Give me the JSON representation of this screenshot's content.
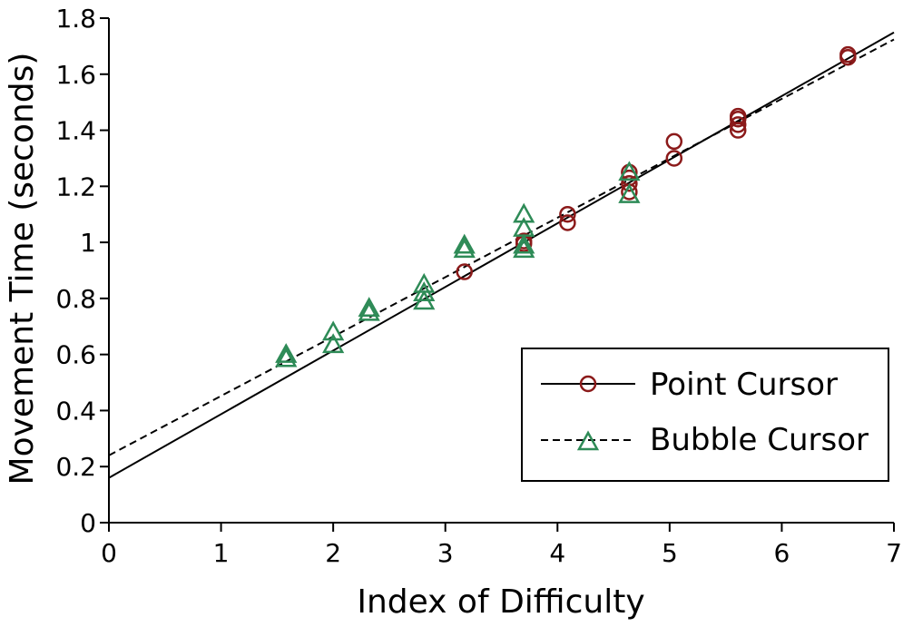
{
  "chart_data": {
    "type": "scatter",
    "title": "",
    "xlabel": "Index of Difficulty",
    "ylabel": "Movement Time (seconds)",
    "xlim": [
      0,
      7
    ],
    "ylim": [
      0,
      1.8
    ],
    "x_ticks": [
      "0",
      "1",
      "2",
      "3",
      "4",
      "5",
      "6",
      "7"
    ],
    "y_ticks": [
      "0",
      "0.2",
      "0.4",
      "0.6",
      "0.8",
      "1",
      "1.2",
      "1.4",
      "1.6",
      "1.8"
    ],
    "grid": false,
    "legend_position": "bottom-right",
    "series": [
      {
        "name": "Point Cursor",
        "marker": "circle",
        "line_style": "solid",
        "color": "#8b1a1a",
        "line_color": "#000000",
        "points": [
          {
            "x": 3.17,
            "y": 0.895
          },
          {
            "x": 3.7,
            "y": 0.995
          },
          {
            "x": 3.7,
            "y": 1.005
          },
          {
            "x": 4.09,
            "y": 1.07
          },
          {
            "x": 4.09,
            "y": 1.1
          },
          {
            "x": 4.64,
            "y": 1.18
          },
          {
            "x": 4.64,
            "y": 1.21
          },
          {
            "x": 4.64,
            "y": 1.23
          },
          {
            "x": 4.64,
            "y": 1.25
          },
          {
            "x": 5.04,
            "y": 1.3
          },
          {
            "x": 5.04,
            "y": 1.36
          },
          {
            "x": 5.61,
            "y": 1.4
          },
          {
            "x": 5.61,
            "y": 1.42
          },
          {
            "x": 5.61,
            "y": 1.44
          },
          {
            "x": 5.61,
            "y": 1.45
          },
          {
            "x": 6.59,
            "y": 1.66
          },
          {
            "x": 6.59,
            "y": 1.67
          }
        ],
        "fit": {
          "intercept": 0.16,
          "slope": 0.227
        }
      },
      {
        "name": "Bubble Cursor",
        "marker": "triangle",
        "line_style": "dashed",
        "color": "#2e8b57",
        "line_color": "#000000",
        "points": [
          {
            "x": 1.58,
            "y": 0.585
          },
          {
            "x": 1.58,
            "y": 0.6
          },
          {
            "x": 2.0,
            "y": 0.635
          },
          {
            "x": 2.0,
            "y": 0.68
          },
          {
            "x": 2.32,
            "y": 0.75
          },
          {
            "x": 2.32,
            "y": 0.765
          },
          {
            "x": 2.81,
            "y": 0.79
          },
          {
            "x": 2.81,
            "y": 0.82
          },
          {
            "x": 2.81,
            "y": 0.85
          },
          {
            "x": 3.17,
            "y": 0.975
          },
          {
            "x": 3.17,
            "y": 0.99
          },
          {
            "x": 3.7,
            "y": 0.975
          },
          {
            "x": 3.7,
            "y": 0.99
          },
          {
            "x": 3.7,
            "y": 1.05
          },
          {
            "x": 3.7,
            "y": 1.1
          },
          {
            "x": 4.64,
            "y": 1.17
          },
          {
            "x": 4.64,
            "y": 1.25
          }
        ],
        "fit": {
          "intercept": 0.24,
          "slope": 0.212
        }
      }
    ]
  }
}
